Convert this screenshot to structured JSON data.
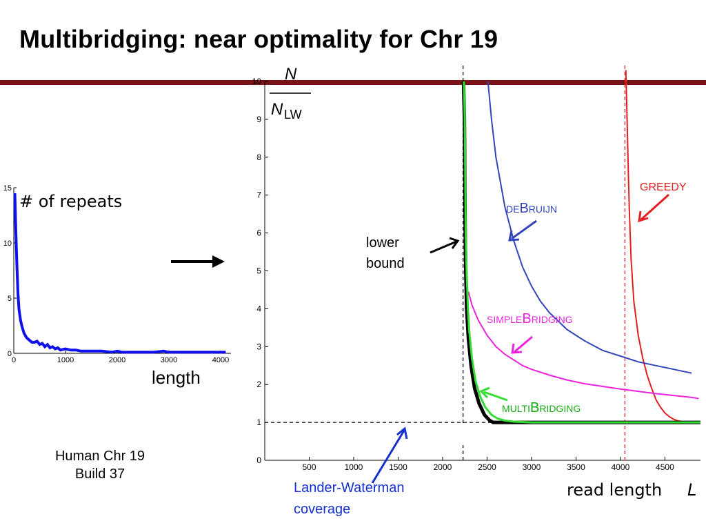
{
  "slide": {
    "title": "Multibridging: near optimality for Chr 19",
    "colors": {
      "title_rule": "#7a1218"
    },
    "caption": {
      "line1": "Human Chr 19",
      "line2": "Build 37"
    },
    "inset_length_label": "length",
    "arrow_icon": "right-arrow"
  },
  "chart_data": [
    {
      "type": "line",
      "name": "repeats-histogram-inset",
      "ylabel": "# of repeats",
      "xlabel": "length",
      "xlim": [
        0,
        4200
      ],
      "ylim": [
        0,
        15
      ],
      "xticks": [
        0,
        1000,
        2000,
        3000,
        4000
      ],
      "xtick_labels": [
        "0",
        "1000",
        "2000",
        "3000",
        "4000"
      ],
      "yticks": [
        0,
        5,
        10,
        15
      ],
      "ytick_labels": [
        "0",
        "5",
        "10",
        "15"
      ],
      "series": [
        {
          "color": "#1010ee",
          "x": [
            20,
            40,
            60,
            80,
            100,
            130,
            160,
            200,
            250,
            300,
            350,
            400,
            450,
            500,
            550,
            600,
            650,
            700,
            750,
            800,
            850,
            900,
            1000,
            1100,
            1200,
            1300,
            1500,
            1700,
            1900,
            2000,
            2100,
            2300,
            2500,
            2700,
            2900,
            3000,
            3100,
            3400,
            3700,
            3900,
            4100
          ],
          "y": [
            14.5,
            11,
            8,
            5.5,
            4,
            3,
            2.4,
            1.8,
            1.4,
            1.2,
            1.0,
            1.0,
            1.1,
            0.8,
            0.9,
            0.6,
            0.8,
            0.5,
            0.6,
            0.4,
            0.5,
            0.3,
            0.4,
            0.3,
            0.3,
            0.2,
            0.2,
            0.2,
            0.1,
            0.2,
            0.1,
            0.1,
            0.1,
            0.1,
            0.2,
            0.1,
            0.1,
            0.1,
            0.1,
            0.1,
            0.1
          ]
        }
      ],
      "grid": false
    },
    {
      "type": "line",
      "name": "normalized-reads-vs-read-length",
      "ylabel": "N / N_LW",
      "ylabel_parts": {
        "numerator": "N",
        "denominator": "N",
        "subscript": "LW"
      },
      "xlabel": "read length",
      "xlabel_var": "L",
      "xlim": [
        0,
        4900
      ],
      "ylim": [
        0,
        10
      ],
      "xticks": [
        500,
        1000,
        1500,
        2000,
        2500,
        3000,
        3500,
        4000,
        4500
      ],
      "xtick_labels": [
        "500",
        "1000",
        "1500",
        "2000",
        "2500",
        "3000",
        "3500",
        "4000",
        "4500"
      ],
      "yticks": [
        0,
        1,
        2,
        3,
        4,
        5,
        6,
        7,
        8,
        9,
        10
      ],
      "ytick_labels": [
        "0",
        "1",
        "2",
        "3",
        "4",
        "5",
        "6",
        "7",
        "8",
        "9",
        "10"
      ],
      "grid": false,
      "reference_lines": [
        {
          "orientation": "horizontal",
          "value": 1,
          "color": "#000000",
          "style": "dashed"
        },
        {
          "orientation": "vertical",
          "value": 2230,
          "color": "#000000",
          "style": "dashed"
        },
        {
          "orientation": "vertical",
          "value": 4050,
          "color": "#dd2222",
          "style": "dashed"
        }
      ],
      "series": [
        {
          "name": "GREEDY",
          "color": "#e02020",
          "width": 2,
          "x": [
            4060,
            4070,
            4080,
            4090,
            4100,
            4120,
            4150,
            4200,
            4250,
            4300,
            4350,
            4400,
            4450,
            4500,
            4550,
            4600,
            4650,
            4700,
            4750,
            4800,
            4850,
            4900
          ],
          "y": [
            10.3,
            9.5,
            8.5,
            7.5,
            6.6,
            5.3,
            4.2,
            3.3,
            2.7,
            2.25,
            1.9,
            1.6,
            1.4,
            1.25,
            1.15,
            1.08,
            1.04,
            1.02,
            1.01,
            1.0,
            1.0,
            1.0
          ]
        },
        {
          "name": "deBruijn",
          "color": "#3344bb",
          "width": 2,
          "x": [
            2510,
            2550,
            2600,
            2700,
            2800,
            2900,
            3000,
            3100,
            3200,
            3400,
            3600,
            3800,
            4000,
            4200,
            4400,
            4600,
            4800
          ],
          "y": [
            10.0,
            9.0,
            8.0,
            6.7,
            5.8,
            5.1,
            4.6,
            4.2,
            3.9,
            3.45,
            3.15,
            2.9,
            2.75,
            2.6,
            2.5,
            2.4,
            2.3
          ]
        },
        {
          "name": "simpleBridging",
          "color": "#ee22dd",
          "width": 2,
          "x": [
            2290,
            2330,
            2400,
            2500,
            2600,
            2700,
            2800,
            2900,
            3000,
            3200,
            3400,
            3600,
            3800,
            4000,
            4200,
            4400,
            4600,
            4800,
            4880
          ],
          "y": [
            4.45,
            4.1,
            3.7,
            3.3,
            3.0,
            2.8,
            2.65,
            2.5,
            2.4,
            2.25,
            2.12,
            2.02,
            1.95,
            1.88,
            1.82,
            1.76,
            1.71,
            1.66,
            1.63
          ]
        },
        {
          "name": "lower bound",
          "color": "#000000",
          "width": 5,
          "x": [
            2235,
            2245,
            2250,
            2255,
            2260,
            2270,
            2290,
            2320,
            2360,
            2410,
            2470,
            2530,
            2570,
            2600,
            3000,
            4000,
            4900
          ],
          "y": [
            10.0,
            9.0,
            7.5,
            6.0,
            5.0,
            4.0,
            3.2,
            2.5,
            1.9,
            1.5,
            1.2,
            1.05,
            1.0,
            1.0,
            1.0,
            1.0,
            1.0
          ]
        },
        {
          "name": "multiBridging",
          "color": "#33dd33",
          "width": 3,
          "x": [
            2240,
            2250,
            2255,
            2260,
            2270,
            2285,
            2300,
            2330,
            2370,
            2420,
            2480,
            2550,
            2620,
            2700,
            2800,
            3000,
            3500,
            4000,
            4500,
            4900
          ],
          "y": [
            10.0,
            9.0,
            7.5,
            6.0,
            5.0,
            4.0,
            3.4,
            2.7,
            2.1,
            1.7,
            1.4,
            1.2,
            1.1,
            1.05,
            1.02,
            1.0,
            1.0,
            1.0,
            1.0,
            1.0
          ]
        }
      ],
      "annotations": {
        "greedy": "GREEDY",
        "debruijn_small": "DE",
        "debruijn_big": "B",
        "debruijn_rest": "RUIJN",
        "simple_small": "SIMPLE",
        "simple_big": "B",
        "simple_rest": "RIDGING",
        "multi_small": "MULTI",
        "multi_big": "B",
        "multi_rest": "RIDGING",
        "lower_bound_line1": "lower",
        "lower_bound_line2": "bound",
        "lw_line1": "Lander-Waterman",
        "lw_line2": "coverage"
      }
    }
  ]
}
